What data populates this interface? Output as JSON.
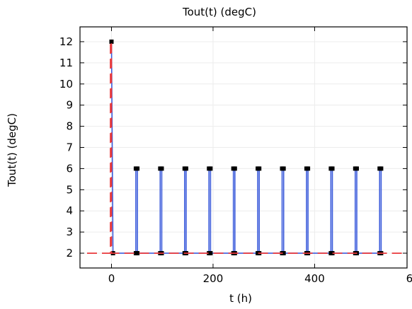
{
  "chart_data": {
    "type": "line",
    "title": "Tout(t) (degC)",
    "xlabel": "t (h)",
    "ylabel": "Tout(t) (degC)",
    "xlim": [
      -62,
      582
    ],
    "ylim": [
      1.3,
      12.7
    ],
    "xticks": [
      0,
      200,
      400,
      600
    ],
    "yticks": [
      2,
      3,
      4,
      5,
      6,
      7,
      8,
      9,
      10,
      11,
      12
    ],
    "grid": true,
    "legend": false,
    "series": [
      {
        "color": "#e8383b",
        "dash": "dashed",
        "points": [
          [
            -48,
            2
          ],
          [
            -2,
            2
          ],
          [
            -2,
            12
          ],
          [
            0,
            12
          ],
          [
            0,
            2
          ],
          [
            576,
            2
          ]
        ]
      },
      {
        "color": "#3b5bdb",
        "dash": "solid",
        "marker": "square",
        "points": [
          [
            0,
            12
          ],
          [
            3,
            2
          ],
          [
            48,
            2
          ],
          [
            48,
            6
          ],
          [
            51,
            6
          ],
          [
            51,
            2
          ],
          [
            96,
            2
          ],
          [
            96,
            6
          ],
          [
            99,
            6
          ],
          [
            99,
            2
          ],
          [
            144,
            2
          ],
          [
            144,
            6
          ],
          [
            147,
            6
          ],
          [
            147,
            2
          ],
          [
            192,
            2
          ],
          [
            192,
            6
          ],
          [
            195,
            6
          ],
          [
            195,
            2
          ],
          [
            240,
            2
          ],
          [
            240,
            6
          ],
          [
            243,
            6
          ],
          [
            243,
            2
          ],
          [
            288,
            2
          ],
          [
            288,
            6
          ],
          [
            291,
            6
          ],
          [
            291,
            2
          ],
          [
            336,
            2
          ],
          [
            336,
            6
          ],
          [
            339,
            6
          ],
          [
            339,
            2
          ],
          [
            384,
            2
          ],
          [
            384,
            6
          ],
          [
            387,
            6
          ],
          [
            387,
            2
          ],
          [
            432,
            2
          ],
          [
            432,
            6
          ],
          [
            435,
            6
          ],
          [
            435,
            2
          ],
          [
            480,
            2
          ],
          [
            480,
            6
          ],
          [
            483,
            6
          ],
          [
            483,
            2
          ],
          [
            528,
            2
          ],
          [
            528,
            6
          ],
          [
            531,
            6
          ],
          [
            531,
            2
          ]
        ]
      }
    ]
  }
}
